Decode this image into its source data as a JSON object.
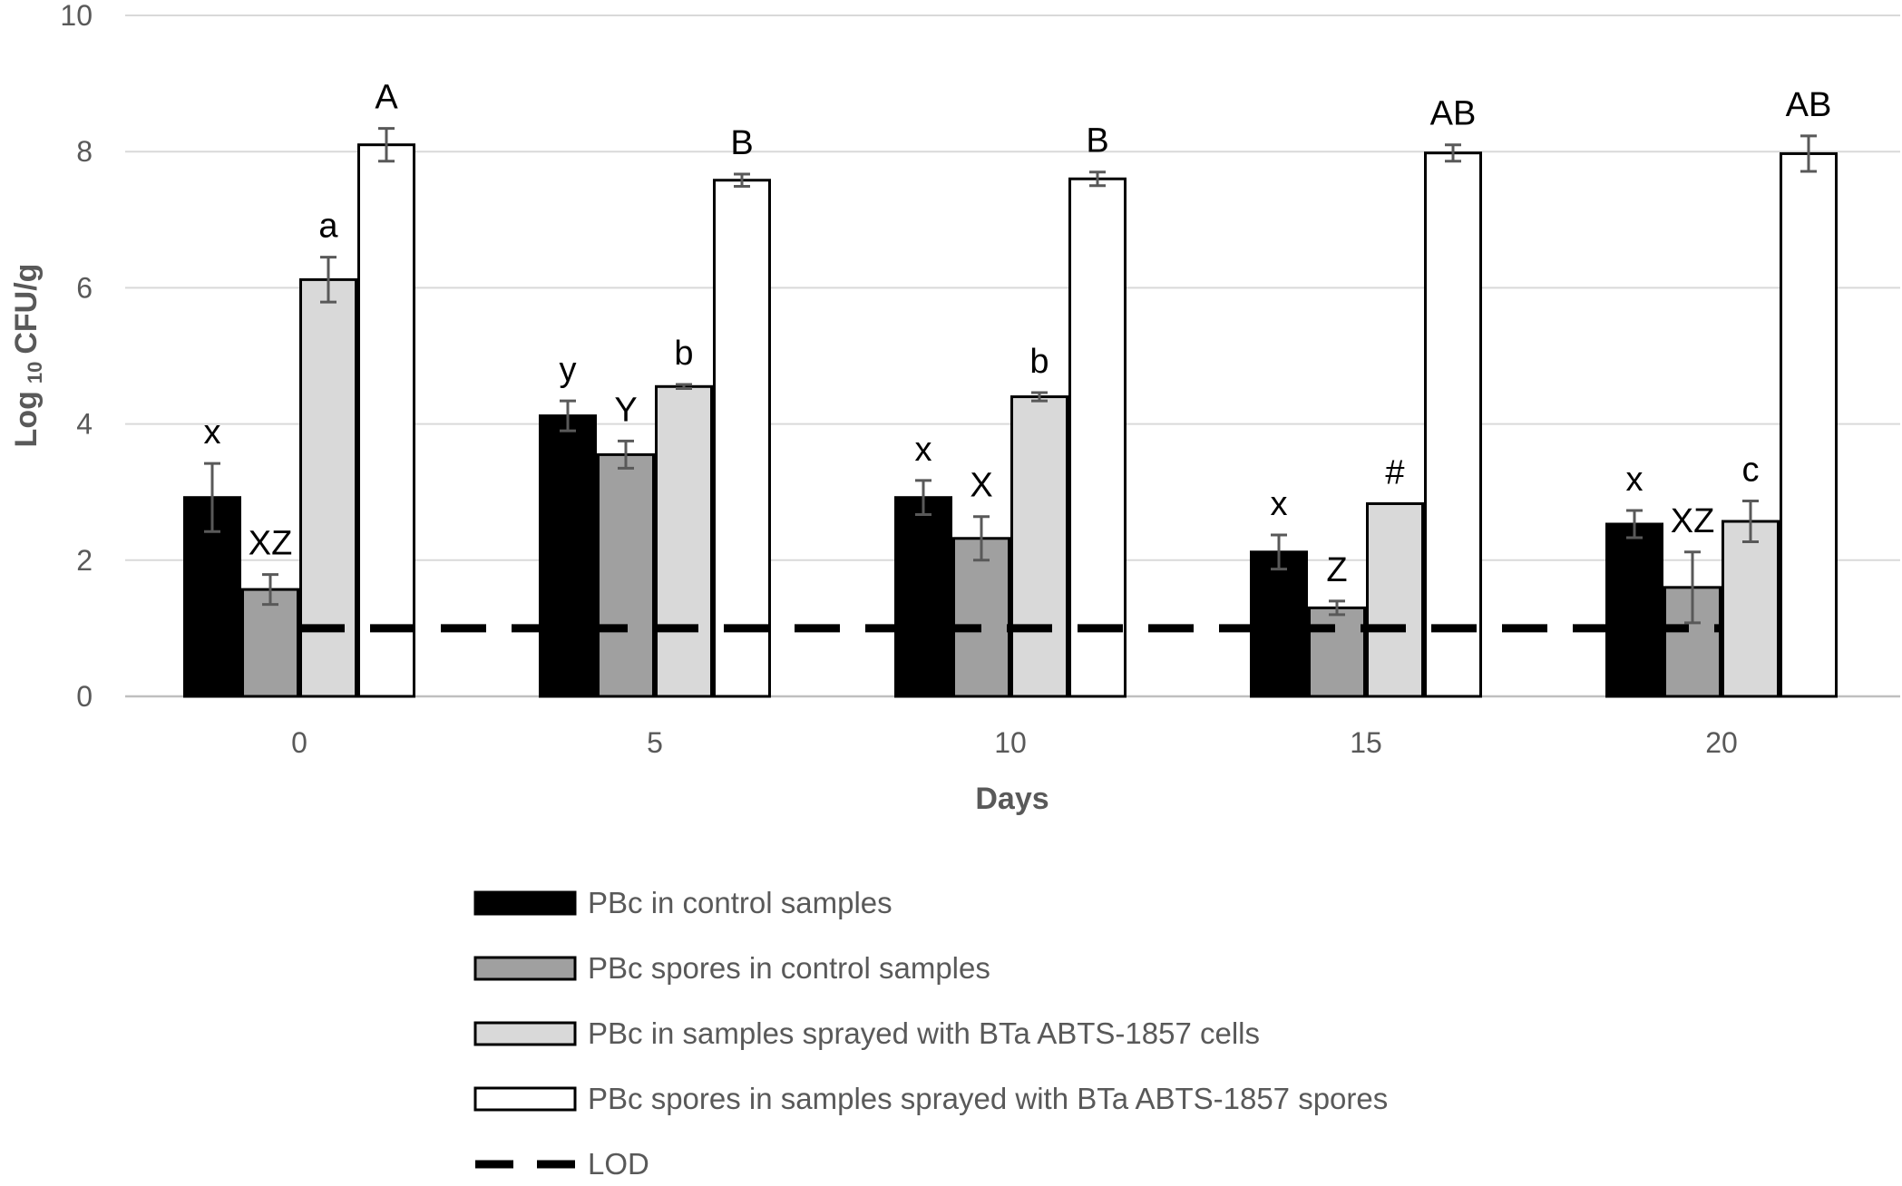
{
  "chart_data": {
    "type": "bar",
    "title": "",
    "xlabel": "Days",
    "ylabel_main": "Log",
    "ylabel_sub": "10",
    "ylabel_tail": "CFU/g",
    "ylim": [
      0,
      10
    ],
    "yticks": [
      "0",
      "2",
      "4",
      "6",
      "8",
      "10"
    ],
    "gridlines": true,
    "legend_position": "bottom",
    "categories": [
      "0",
      "5",
      "10",
      "15",
      "20"
    ],
    "series": [
      {
        "name": "PBc in control samples",
        "color": "#000000",
        "values": [
          2.92,
          4.12,
          2.92,
          2.12,
          2.53
        ],
        "errors": [
          0.5,
          0.22,
          0.25,
          0.25,
          0.2
        ],
        "labels": [
          "x",
          "y",
          "x",
          "x",
          "x"
        ]
      },
      {
        "name": "PBc spores in control samples",
        "color": "#a0a0a0",
        "values": [
          1.57,
          3.55,
          2.32,
          1.3,
          1.6
        ],
        "errors": [
          0.22,
          0.2,
          0.32,
          0.1,
          0.52
        ],
        "labels": [
          "XZ",
          "Y",
          "X",
          "Z",
          "XZ"
        ]
      },
      {
        "name": "PBc in samples sprayed with BTa ABTS-1857 cells",
        "color": "#d9d9d9",
        "values": [
          6.12,
          4.55,
          4.4,
          2.83,
          2.57
        ],
        "errors": [
          0.33,
          0.03,
          0.06,
          0.0,
          0.3
        ],
        "labels": [
          "a",
          "b",
          "b",
          "#",
          "c"
        ]
      },
      {
        "name": "PBc spores in samples sprayed with BTa ABTS-1857 spores",
        "color": "#ffffff",
        "values": [
          8.1,
          7.58,
          7.6,
          7.98,
          7.97
        ],
        "errors": [
          0.24,
          0.09,
          0.1,
          0.12,
          0.26
        ],
        "labels": [
          "A",
          "B",
          "B",
          "AB",
          "AB"
        ]
      }
    ],
    "reference_line": {
      "name": "LOD",
      "value": 1.0,
      "style": "dashed",
      "color": "#000000"
    }
  }
}
